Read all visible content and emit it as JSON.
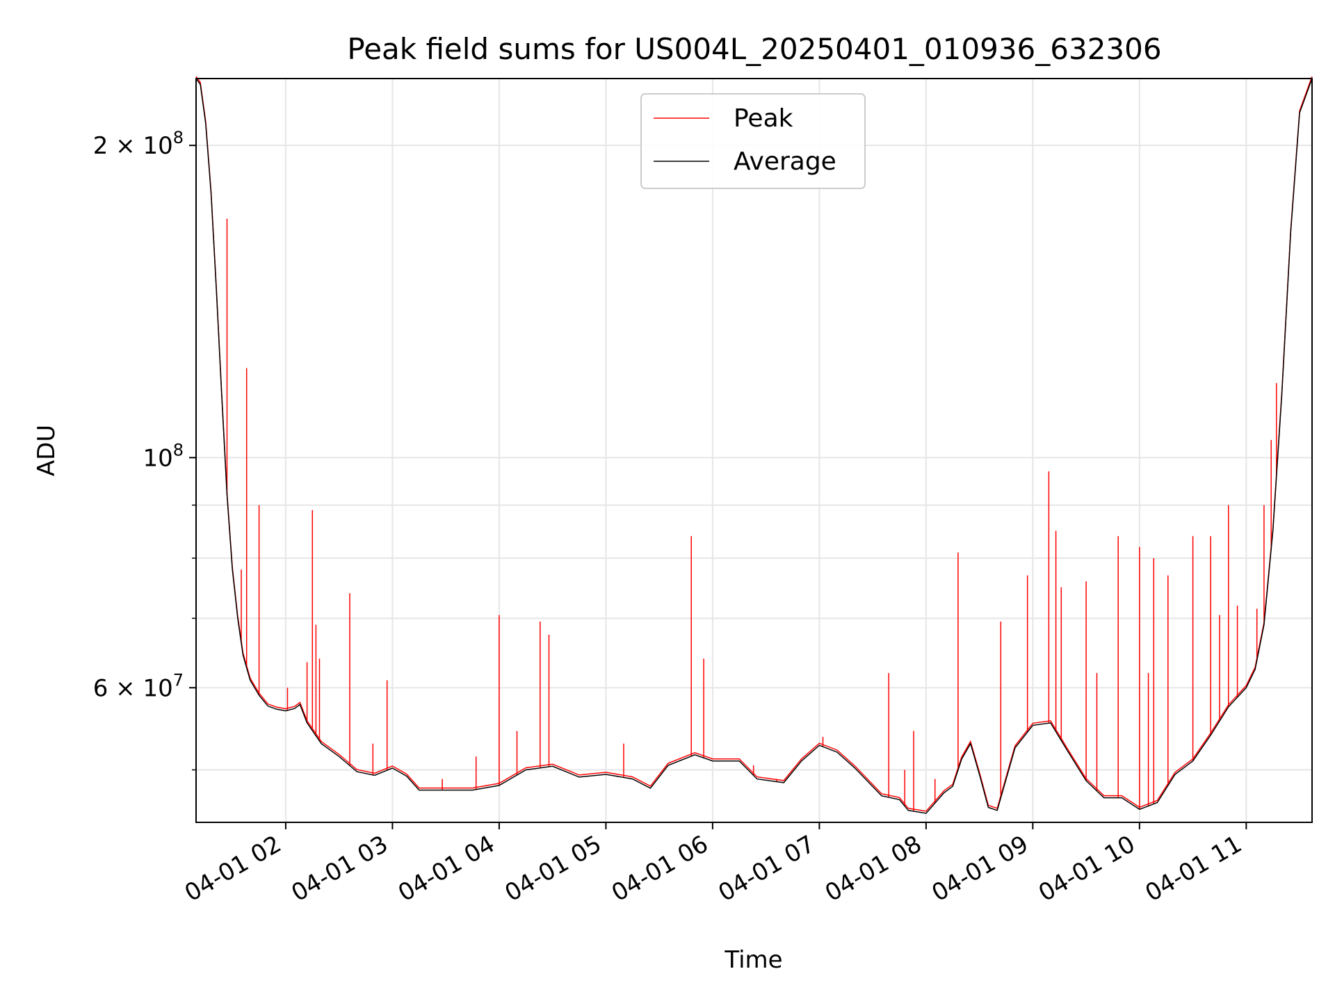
{
  "chart_data": {
    "type": "line",
    "title": "Peak field sums for US004L_20250401_010936_632306",
    "xlabel": "Time",
    "ylabel": "ADU",
    "y_scale": "log",
    "ylim": [
      44500000,
      232000000
    ],
    "xlim": [
      "2025-04-01 01:09:36",
      "2025-04-01 11:37:00"
    ],
    "grid": true,
    "legend_position": "top-center",
    "x_ticks": [
      {
        "x": "2025-04-01 02:00",
        "label": "04-01 02"
      },
      {
        "x": "2025-04-01 03:00",
        "label": "04-01 03"
      },
      {
        "x": "2025-04-01 04:00",
        "label": "04-01 04"
      },
      {
        "x": "2025-04-01 05:00",
        "label": "04-01 05"
      },
      {
        "x": "2025-04-01 06:00",
        "label": "04-01 06"
      },
      {
        "x": "2025-04-01 07:00",
        "label": "04-01 07"
      },
      {
        "x": "2025-04-01 08:00",
        "label": "04-01 08"
      },
      {
        "x": "2025-04-01 09:00",
        "label": "04-01 09"
      },
      {
        "x": "2025-04-01 10:00",
        "label": "04-01 10"
      },
      {
        "x": "2025-04-01 11:00",
        "label": "04-01 11"
      }
    ],
    "y_ticks_major": [
      {
        "y": 200000000,
        "label_base": "2 × 10",
        "label_exp": "8"
      },
      {
        "y": 100000000,
        "label_base": "10",
        "label_exp": "8"
      },
      {
        "y": 60000000,
        "label_base": "6 × 10",
        "label_exp": "7"
      }
    ],
    "y_ticks_minor": [
      50000000,
      70000000,
      80000000,
      90000000
    ],
    "series": [
      {
        "name": "Average",
        "color": "#000000",
        "points": [
          [
            "2025-04-01 01:09:36",
            232000000
          ],
          [
            "2025-04-01 01:12",
            229000000
          ],
          [
            "2025-04-01 01:15",
            210000000
          ],
          [
            "2025-04-01 01:18",
            180000000
          ],
          [
            "2025-04-01 01:21",
            145000000
          ],
          [
            "2025-04-01 01:24",
            115000000
          ],
          [
            "2025-04-01 01:27",
            92000000
          ],
          [
            "2025-04-01 01:30",
            78000000
          ],
          [
            "2025-04-01 01:33",
            70000000
          ],
          [
            "2025-04-01 01:36",
            64500000
          ],
          [
            "2025-04-01 01:40",
            61000000
          ],
          [
            "2025-04-01 01:45",
            59000000
          ],
          [
            "2025-04-01 01:50",
            57600000
          ],
          [
            "2025-04-01 01:55",
            57200000
          ],
          [
            "2025-04-01 02:00",
            57000000
          ],
          [
            "2025-04-01 02:05",
            57300000
          ],
          [
            "2025-04-01 02:08",
            57800000
          ],
          [
            "2025-04-01 02:12",
            55500000
          ],
          [
            "2025-04-01 02:20",
            53000000
          ],
          [
            "2025-04-01 02:30",
            51500000
          ],
          [
            "2025-04-01 02:40",
            49800000
          ],
          [
            "2025-04-01 02:50",
            49400000
          ],
          [
            "2025-04-01 03:00",
            50200000
          ],
          [
            "2025-04-01 03:08",
            49300000
          ],
          [
            "2025-04-01 03:15",
            47800000
          ],
          [
            "2025-04-01 03:30",
            47800000
          ],
          [
            "2025-04-01 03:45",
            47800000
          ],
          [
            "2025-04-01 04:00",
            48300000
          ],
          [
            "2025-04-01 04:15",
            50000000
          ],
          [
            "2025-04-01 04:30",
            50400000
          ],
          [
            "2025-04-01 04:45",
            49200000
          ],
          [
            "2025-04-01 05:00",
            49500000
          ],
          [
            "2025-04-01 05:15",
            49000000
          ],
          [
            "2025-04-01 05:25",
            48000000
          ],
          [
            "2025-04-01 05:35",
            50500000
          ],
          [
            "2025-04-01 05:50",
            51700000
          ],
          [
            "2025-04-01 06:00",
            51000000
          ],
          [
            "2025-04-01 06:15",
            51000000
          ],
          [
            "2025-04-01 06:25",
            49000000
          ],
          [
            "2025-04-01 06:40",
            48600000
          ],
          [
            "2025-04-01 06:50",
            51000000
          ],
          [
            "2025-04-01 07:00",
            52800000
          ],
          [
            "2025-04-01 07:10",
            52000000
          ],
          [
            "2025-04-01 07:20",
            50200000
          ],
          [
            "2025-04-01 07:35",
            47200000
          ],
          [
            "2025-04-01 07:45",
            46800000
          ],
          [
            "2025-04-01 07:50",
            45700000
          ],
          [
            "2025-04-01 08:00",
            45400000
          ],
          [
            "2025-04-01 08:10",
            47500000
          ],
          [
            "2025-04-01 08:15",
            48200000
          ],
          [
            "2025-04-01 08:20",
            51200000
          ],
          [
            "2025-04-01 08:25",
            53000000
          ],
          [
            "2025-04-01 08:30",
            49500000
          ],
          [
            "2025-04-01 08:35",
            46000000
          ],
          [
            "2025-04-01 08:40",
            45700000
          ],
          [
            "2025-04-01 08:50",
            52500000
          ],
          [
            "2025-04-01 09:00",
            55200000
          ],
          [
            "2025-04-01 09:10",
            55500000
          ],
          [
            "2025-04-01 09:20",
            52000000
          ],
          [
            "2025-04-01 09:30",
            48800000
          ],
          [
            "2025-04-01 09:40",
            47000000
          ],
          [
            "2025-04-01 09:50",
            47000000
          ],
          [
            "2025-04-01 10:00",
            45800000
          ],
          [
            "2025-04-01 10:10",
            46500000
          ],
          [
            "2025-04-01 10:20",
            49500000
          ],
          [
            "2025-04-01 10:30",
            51000000
          ],
          [
            "2025-04-01 10:40",
            54000000
          ],
          [
            "2025-04-01 10:50",
            57500000
          ],
          [
            "2025-04-01 11:00",
            60000000
          ],
          [
            "2025-04-01 11:05",
            62500000
          ],
          [
            "2025-04-01 11:10",
            69000000
          ],
          [
            "2025-04-01 11:15",
            85000000
          ],
          [
            "2025-04-01 11:20",
            115000000
          ],
          [
            "2025-04-01 11:25",
            165000000
          ],
          [
            "2025-04-01 11:30",
            215000000
          ],
          [
            "2025-04-01 11:37",
            232000000
          ]
        ]
      },
      {
        "name": "Peak",
        "color": "#ff0000",
        "spikes": [
          [
            "2025-04-01 01:27",
            170000000
          ],
          [
            "2025-04-01 01:35",
            78000000
          ],
          [
            "2025-04-01 01:38",
            122000000
          ],
          [
            "2025-04-01 01:45",
            90000000
          ],
          [
            "2025-04-01 02:01",
            60000000
          ],
          [
            "2025-04-01 02:12",
            63500000
          ],
          [
            "2025-04-01 02:15",
            89000000
          ],
          [
            "2025-04-01 02:17",
            69000000
          ],
          [
            "2025-04-01 02:19",
            64000000
          ],
          [
            "2025-04-01 02:36",
            74000000
          ],
          [
            "2025-04-01 02:49",
            53000000
          ],
          [
            "2025-04-01 02:57",
            61000000
          ],
          [
            "2025-04-01 03:28",
            49000000
          ],
          [
            "2025-04-01 03:47",
            51500000
          ],
          [
            "2025-04-01 04:00",
            70500000
          ],
          [
            "2025-04-01 04:10",
            54500000
          ],
          [
            "2025-04-01 04:23",
            69500000
          ],
          [
            "2025-04-01 04:28",
            67500000
          ],
          [
            "2025-04-01 05:10",
            53000000
          ],
          [
            "2025-04-01 05:48",
            84000000
          ],
          [
            "2025-04-01 05:55",
            64000000
          ],
          [
            "2025-04-01 06:10",
            51000000
          ],
          [
            "2025-04-01 06:23",
            50500000
          ],
          [
            "2025-04-01 06:36",
            49000000
          ],
          [
            "2025-04-01 07:02",
            53800000
          ],
          [
            "2025-04-01 07:39",
            62000000
          ],
          [
            "2025-04-01 07:48",
            50000000
          ],
          [
            "2025-04-01 07:53",
            54500000
          ],
          [
            "2025-04-01 08:05",
            49000000
          ],
          [
            "2025-04-01 08:18",
            81000000
          ],
          [
            "2025-04-01 08:42",
            69500000
          ],
          [
            "2025-04-01 08:57",
            77000000
          ],
          [
            "2025-04-01 09:09",
            97000000
          ],
          [
            "2025-04-01 09:13",
            85000000
          ],
          [
            "2025-04-01 09:16",
            75000000
          ],
          [
            "2025-04-01 09:30",
            76000000
          ],
          [
            "2025-04-01 09:36",
            62000000
          ],
          [
            "2025-04-01 09:48",
            84000000
          ],
          [
            "2025-04-01 10:00",
            82000000
          ],
          [
            "2025-04-01 10:05",
            62000000
          ],
          [
            "2025-04-01 10:08",
            80000000
          ],
          [
            "2025-04-01 10:16",
            77000000
          ],
          [
            "2025-04-01 10:30",
            84000000
          ],
          [
            "2025-04-01 10:40",
            84000000
          ],
          [
            "2025-04-01 10:45",
            70500000
          ],
          [
            "2025-04-01 10:50",
            90000000
          ],
          [
            "2025-04-01 10:55",
            72000000
          ],
          [
            "2025-04-01 11:06",
            71500000
          ],
          [
            "2025-04-01 11:10",
            90000000
          ],
          [
            "2025-04-01 11:14",
            104000000
          ],
          [
            "2025-04-01 11:17",
            118000000
          ]
        ]
      }
    ]
  }
}
